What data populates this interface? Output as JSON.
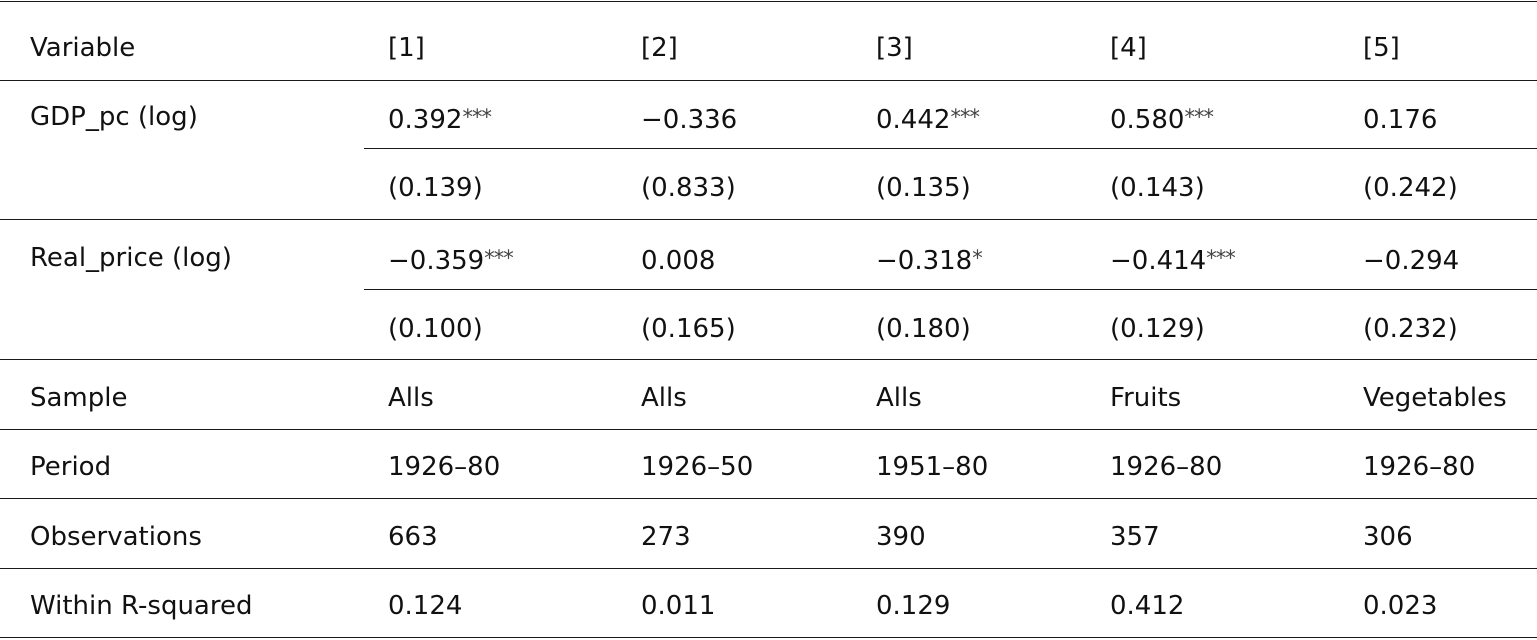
{
  "header": [
    "Variable",
    "[1]",
    "[2]",
    "[3]",
    "[4]",
    "[5]"
  ],
  "gdp": {
    "label": "GDP_pc (log)",
    "coef": [
      "0.392",
      "−0.336",
      "0.442",
      "0.580",
      "0.176"
    ],
    "stars": [
      "***",
      "",
      "***",
      "***",
      ""
    ],
    "se": [
      "(0.139)",
      "(0.833)",
      "(0.135)",
      "(0.143)",
      "(0.242)"
    ]
  },
  "price": {
    "label": "Real_price (log)",
    "coef": [
      "−0.359",
      "0.008",
      "−0.318",
      "−0.414",
      "−0.294"
    ],
    "stars": [
      "***",
      "",
      "*",
      "***",
      ""
    ],
    "se": [
      "(0.100)",
      "(0.165)",
      "(0.180)",
      "(0.129)",
      "(0.232)"
    ]
  },
  "sample": {
    "label": "Sample",
    "values": [
      "Alls",
      "Alls",
      "Alls",
      "Fruits",
      "Vegetables"
    ]
  },
  "period": {
    "label": "Period",
    "values": [
      "1926–80",
      "1926–50",
      "1951–80",
      "1926–80",
      "1926–80"
    ]
  },
  "observations": {
    "label": "Observations",
    "values": [
      "663",
      "273",
      "390",
      "357",
      "306"
    ]
  },
  "r2": {
    "label": "Within R-squared",
    "values": [
      "0.124",
      "0.011",
      "0.129",
      "0.412",
      "0.023"
    ]
  }
}
